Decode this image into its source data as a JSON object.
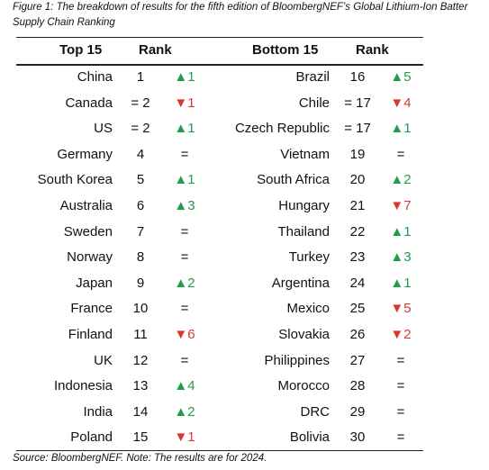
{
  "caption": {
    "line1": "Figure 1: The breakdown of results for the fifth edition of BloombergNEF’s Global Lithium-Ion Batter",
    "line2": "Supply Chain Ranking"
  },
  "table": {
    "headers": [
      "Top 15",
      "Rank",
      "Bottom 15",
      "Rank"
    ],
    "top": [
      [
        "China",
        "1",
        "▲1"
      ],
      [
        "Canada",
        "= 2",
        "▼1"
      ],
      [
        "US",
        "= 2",
        "▲1"
      ],
      [
        "Germany",
        "4",
        "="
      ],
      [
        "South Korea",
        "5",
        "▲1"
      ],
      [
        "Australia",
        "6",
        "▲3"
      ],
      [
        "Sweden",
        "7",
        "="
      ],
      [
        "Norway",
        "8",
        "="
      ],
      [
        "Japan",
        "9",
        "▲2"
      ],
      [
        "France",
        "10",
        "="
      ],
      [
        "Finland",
        "11",
        "▼6"
      ],
      [
        "UK",
        "12",
        "="
      ],
      [
        "Indonesia",
        "13",
        "▲4"
      ],
      [
        "India",
        "14",
        "▲2"
      ],
      [
        "Poland",
        "15",
        "▼1"
      ]
    ],
    "bottom": [
      [
        "Brazil",
        "16",
        "▲5"
      ],
      [
        "Chile",
        "= 17",
        "▼4"
      ],
      [
        "Czech Republic",
        "= 17",
        "▲1"
      ],
      [
        "Vietnam",
        "19",
        "="
      ],
      [
        "South Africa",
        "20",
        "▲2"
      ],
      [
        "Hungary",
        "21",
        "▼7"
      ],
      [
        "Thailand",
        "22",
        "▲1"
      ],
      [
        "Turkey",
        "23",
        "▲3"
      ],
      [
        "Argentina",
        "24",
        "▲1"
      ],
      [
        "Mexico",
        "25",
        "▼5"
      ],
      [
        "Slovakia",
        "26",
        "▼2"
      ],
      [
        "Philippines",
        "27",
        "="
      ],
      [
        "Morocco",
        "28",
        "="
      ],
      [
        "DRC",
        "29",
        "="
      ],
      [
        "Bolivia",
        "30",
        "="
      ]
    ]
  },
  "source": "Source: BloombergNEF. Note: The results are for 2024."
}
